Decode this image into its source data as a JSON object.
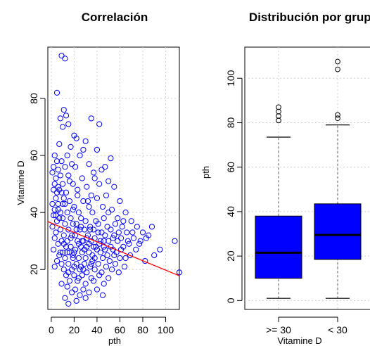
{
  "chart_data": [
    {
      "type": "scatter",
      "title": "Correlación",
      "xlabel": "pth",
      "ylabel": "Vitamine D",
      "xlim": [
        -3,
        112
      ],
      "ylim": [
        6,
        98
      ],
      "xticks": [
        "0",
        "20",
        "40",
        "60",
        "80",
        "100"
      ],
      "yticks": [
        "20",
        "40",
        "60",
        "80"
      ],
      "grid": true,
      "point_color": "#0000ff",
      "line_color": "#ff0000",
      "regression_line": {
        "x": [
          -3,
          112
        ],
        "y": [
          36.8,
          17.8
        ]
      },
      "points": [
        [
          9,
          95
        ],
        [
          12,
          94
        ],
        [
          5,
          82
        ],
        [
          11,
          76
        ],
        [
          13,
          74
        ],
        [
          8,
          73
        ],
        [
          15,
          71
        ],
        [
          35,
          73
        ],
        [
          42,
          71
        ],
        [
          10,
          70
        ],
        [
          20,
          67
        ],
        [
          22,
          66
        ],
        [
          7,
          64
        ],
        [
          30,
          65
        ],
        [
          17,
          63
        ],
        [
          28,
          62
        ],
        [
          3,
          60
        ],
        [
          14,
          60
        ],
        [
          25,
          60
        ],
        [
          40,
          62
        ],
        [
          52,
          59
        ],
        [
          5,
          58
        ],
        [
          9,
          58
        ],
        [
          18,
          57
        ],
        [
          33,
          57
        ],
        [
          47,
          56
        ],
        [
          2,
          56
        ],
        [
          6,
          55
        ],
        [
          12,
          56
        ],
        [
          21,
          56
        ],
        [
          37,
          54
        ],
        [
          44,
          55
        ],
        [
          1,
          54
        ],
        [
          4,
          52
        ],
        [
          8,
          53
        ],
        [
          15,
          53
        ],
        [
          27,
          52
        ],
        [
          38,
          52
        ],
        [
          50,
          51
        ],
        [
          3,
          50
        ],
        [
          6,
          49
        ],
        [
          10,
          50
        ],
        [
          19,
          50
        ],
        [
          31,
          49
        ],
        [
          42,
          50
        ],
        [
          55,
          49
        ],
        [
          2,
          48
        ],
        [
          5,
          47
        ],
        [
          7,
          48
        ],
        [
          9,
          47
        ],
        [
          13,
          47
        ],
        [
          23,
          46
        ],
        [
          35,
          46
        ],
        [
          48,
          46
        ],
        [
          4,
          45
        ],
        [
          11,
          45
        ],
        [
          16,
          44
        ],
        [
          28,
          44
        ],
        [
          40,
          45
        ],
        [
          60,
          44
        ],
        [
          1,
          43
        ],
        [
          6,
          43
        ],
        [
          12,
          43
        ],
        [
          20,
          42
        ],
        [
          33,
          42
        ],
        [
          45,
          42
        ],
        [
          53,
          41
        ],
        [
          3,
          41
        ],
        [
          8,
          40
        ],
        [
          14,
          40
        ],
        [
          24,
          40
        ],
        [
          36,
          40
        ],
        [
          50,
          40
        ],
        [
          65,
          40
        ],
        [
          2,
          39
        ],
        [
          7,
          38
        ],
        [
          10,
          38
        ],
        [
          17,
          38
        ],
        [
          26,
          38
        ],
        [
          30,
          37
        ],
        [
          39,
          37
        ],
        [
          46,
          38
        ],
        [
          58,
          38
        ],
        [
          70,
          37
        ],
        [
          5,
          37
        ],
        [
          12,
          36
        ],
        [
          19,
          36
        ],
        [
          22,
          36
        ],
        [
          34,
          35
        ],
        [
          41,
          36
        ],
        [
          49,
          35
        ],
        [
          56,
          36
        ],
        [
          62,
          35
        ],
        [
          75,
          35
        ],
        [
          1,
          35
        ],
        [
          8,
          34
        ],
        [
          15,
          34
        ],
        [
          25,
          34
        ],
        [
          29,
          34
        ],
        [
          37,
          34
        ],
        [
          44,
          33
        ],
        [
          52,
          34
        ],
        [
          66,
          33
        ],
        [
          80,
          33
        ],
        [
          4,
          33
        ],
        [
          11,
          32
        ],
        [
          18,
          32
        ],
        [
          21,
          32
        ],
        [
          32,
          32
        ],
        [
          38,
          31
        ],
        [
          47,
          32
        ],
        [
          55,
          32
        ],
        [
          61,
          31
        ],
        [
          72,
          31
        ],
        [
          85,
          32
        ],
        [
          3,
          31
        ],
        [
          9,
          30
        ],
        [
          14,
          30
        ],
        [
          23,
          30
        ],
        [
          28,
          30
        ],
        [
          35,
          30
        ],
        [
          42,
          29
        ],
        [
          50,
          30
        ],
        [
          58,
          30
        ],
        [
          68,
          29
        ],
        [
          78,
          30
        ],
        [
          6,
          29
        ],
        [
          13,
          28
        ],
        [
          17,
          28
        ],
        [
          26,
          28
        ],
        [
          31,
          28
        ],
        [
          40,
          27
        ],
        [
          46,
          28
        ],
        [
          54,
          27
        ],
        [
          63,
          28
        ],
        [
          74,
          27
        ],
        [
          2,
          27
        ],
        [
          10,
          26
        ],
        [
          16,
          26
        ],
        [
          20,
          26
        ],
        [
          27,
          26
        ],
        [
          33,
          26
        ],
        [
          43,
          26
        ],
        [
          49,
          25
        ],
        [
          57,
          26
        ],
        [
          69,
          25
        ],
        [
          7,
          25
        ],
        [
          12,
          24
        ],
        [
          19,
          24
        ],
        [
          24,
          24
        ],
        [
          30,
          24
        ],
        [
          36,
          23
        ],
        [
          45,
          24
        ],
        [
          51,
          23
        ],
        [
          60,
          24
        ],
        [
          82,
          23
        ],
        [
          5,
          23
        ],
        [
          9,
          22
        ],
        [
          15,
          22
        ],
        [
          22,
          22
        ],
        [
          29,
          22
        ],
        [
          34,
          21
        ],
        [
          41,
          22
        ],
        [
          48,
          21
        ],
        [
          56,
          22
        ],
        [
          64,
          21
        ],
        [
          3,
          21
        ],
        [
          11,
          20
        ],
        [
          18,
          20
        ],
        [
          25,
          20
        ],
        [
          31,
          19
        ],
        [
          38,
          20
        ],
        [
          44,
          19
        ],
        [
          53,
          20
        ],
        [
          59,
          19
        ],
        [
          13,
          18
        ],
        [
          20,
          18
        ],
        [
          27,
          18
        ],
        [
          35,
          17
        ],
        [
          42,
          18
        ],
        [
          50,
          17
        ],
        [
          16,
          16
        ],
        [
          23,
          16
        ],
        [
          30,
          15
        ],
        [
          37,
          16
        ],
        [
          46,
          15
        ],
        [
          9,
          15
        ],
        [
          14,
          14
        ],
        [
          21,
          13
        ],
        [
          28,
          13
        ],
        [
          40,
          13
        ],
        [
          18,
          12
        ],
        [
          25,
          11
        ],
        [
          33,
          12
        ],
        [
          45,
          11
        ],
        [
          12,
          10
        ],
        [
          22,
          9
        ],
        [
          30,
          10
        ],
        [
          15,
          8
        ],
        [
          108,
          30
        ],
        [
          112,
          19
        ],
        [
          95,
          27
        ],
        [
          90,
          25
        ],
        [
          88,
          35
        ],
        [
          83,
          31
        ],
        [
          77,
          29
        ],
        [
          71,
          33
        ],
        [
          67,
          30
        ],
        [
          63,
          37
        ],
        [
          59,
          33
        ],
        [
          54,
          31
        ],
        [
          39,
          28
        ],
        [
          26,
          35
        ],
        [
          19,
          41
        ],
        [
          10,
          43
        ],
        [
          6,
          41
        ],
        [
          4,
          39
        ],
        [
          32,
          44
        ],
        [
          23,
          48
        ],
        [
          16,
          51
        ],
        [
          27,
          30
        ],
        [
          29,
          27
        ],
        [
          24,
          29
        ],
        [
          21,
          27
        ],
        [
          36,
          25
        ],
        [
          33,
          29
        ],
        [
          38,
          24
        ],
        [
          43,
          30
        ],
        [
          47,
          27
        ],
        [
          26,
          21
        ],
        [
          19,
          25
        ],
        [
          14,
          26
        ],
        [
          11,
          29
        ],
        [
          8,
          26
        ],
        [
          17,
          31
        ],
        [
          22,
          34
        ],
        [
          31,
          31
        ],
        [
          34,
          34
        ],
        [
          37,
          28
        ],
        [
          41,
          33
        ],
        [
          46,
          30
        ],
        [
          52,
          28
        ],
        [
          55,
          25
        ],
        [
          61,
          27
        ],
        [
          65,
          24
        ],
        [
          20,
          21
        ],
        [
          15,
          19
        ],
        [
          24,
          17
        ],
        [
          28,
          20
        ],
        [
          35,
          22
        ]
      ]
    },
    {
      "type": "box",
      "title": "Distribución por grupo",
      "xlabel": "Vitamine D",
      "ylabel": "pth",
      "ylim": [
        -4,
        114
      ],
      "yticks": [
        "0",
        "20",
        "40",
        "60",
        "80",
        "100"
      ],
      "categories": [
        ">= 30",
        "< 30"
      ],
      "grid": true,
      "box_color": "#0000ff",
      "boxes": [
        {
          "name": ">= 30",
          "min": 1,
          "q1": 10,
          "median": 21.5,
          "q3": 38,
          "max": 73.5,
          "outliers": [
            81,
            83,
            85,
            87
          ]
        },
        {
          "name": "< 30",
          "min": 1,
          "q1": 18.5,
          "median": 29.5,
          "q3": 43.5,
          "max": 79,
          "outliers": [
            82,
            83.5,
            104,
            107.5
          ]
        }
      ]
    }
  ]
}
